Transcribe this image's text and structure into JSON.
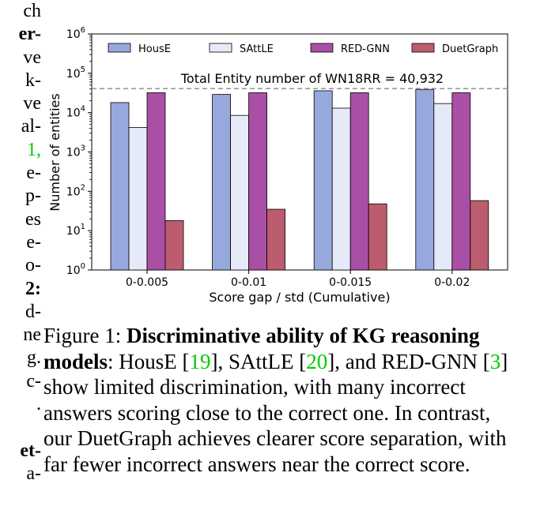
{
  "left_fragments": [
    {
      "text": "ch",
      "bold": false,
      "green": false
    },
    {
      "text": "er-",
      "bold": true,
      "green": false
    },
    {
      "text": "ve",
      "bold": false,
      "green": false
    },
    {
      "text": "k-",
      "bold": false,
      "green": false
    },
    {
      "text": "ve",
      "bold": false,
      "green": false
    },
    {
      "text": "al-",
      "bold": false,
      "green": false
    },
    {
      "text": "1,",
      "bold": false,
      "green": true
    },
    {
      "text": "e-",
      "bold": false,
      "green": false
    },
    {
      "text": "p-",
      "bold": false,
      "green": false
    },
    {
      "text": "es",
      "bold": false,
      "green": false
    },
    {
      "text": "e-",
      "bold": false,
      "green": false
    },
    {
      "text": "o-",
      "bold": false,
      "green": false
    },
    {
      "text": "2:",
      "bold": true,
      "green": false
    },
    {
      "text": "d-",
      "bold": false,
      "green": false
    },
    {
      "text": "ne",
      "bold": false,
      "green": false
    },
    {
      "text": "g.",
      "bold": false,
      "green": false
    },
    {
      "text": "c-",
      "bold": false,
      "green": false
    },
    {
      "text": ".",
      "bold": false,
      "green": false
    },
    {
      "text": "",
      "bold": false,
      "green": false
    },
    {
      "text": "et-",
      "bold": true,
      "green": false
    },
    {
      "text": "a-",
      "bold": false,
      "green": false
    }
  ],
  "caption": {
    "label": "Figure 1: ",
    "bold_title": "Discriminative ability of KG reasoning models",
    "part1": ": HousE [",
    "cite1": "19",
    "part2": "], SAttLE [",
    "cite2": "20",
    "part3": "], and RED-GNN [",
    "cite3": "3",
    "part4": "] show limited discrimination, with many incorrect answers scoring close to the correct one. In contrast, our DuetGraph achieves clearer score separation, with far fewer incorrect answers near the correct score."
  },
  "chart_data": {
    "type": "bar",
    "xlabel": "Score gap / std (Cumulative)",
    "ylabel": "Number of entities",
    "yscale": "log",
    "ylim": [
      1,
      1000000
    ],
    "yticks": [
      {
        "value": 1,
        "base": "10",
        "exp": "0"
      },
      {
        "value": 10,
        "base": "10",
        "exp": "1"
      },
      {
        "value": 100,
        "base": "10",
        "exp": "2"
      },
      {
        "value": 1000,
        "base": "10",
        "exp": "3"
      },
      {
        "value": 10000,
        "base": "10",
        "exp": "4"
      },
      {
        "value": 100000,
        "base": "10",
        "exp": "5"
      },
      {
        "value": 1000000,
        "base": "10",
        "exp": "6"
      }
    ],
    "categories": [
      "0-0.005",
      "0-0.01",
      "0-0.015",
      "0-0.02"
    ],
    "series": [
      {
        "name": "HousE",
        "color": "#97a8dc",
        "values": [
          18000,
          29000,
          36000,
          39000
        ]
      },
      {
        "name": "SAttLE",
        "color": "#e6eaf8",
        "values": [
          4200,
          8500,
          13000,
          17000
        ]
      },
      {
        "name": "RED-GNN",
        "color": "#a94fa5",
        "values": [
          32000,
          32000,
          32000,
          32000
        ]
      },
      {
        "name": "DuetGraph",
        "color": "#bb5d6e",
        "values": [
          18,
          35,
          48,
          58
        ]
      }
    ],
    "reference_line": {
      "value": 40932,
      "label": "Total Entity number of WN18RR = 40,932"
    },
    "legend_position": "top",
    "grid": false
  }
}
